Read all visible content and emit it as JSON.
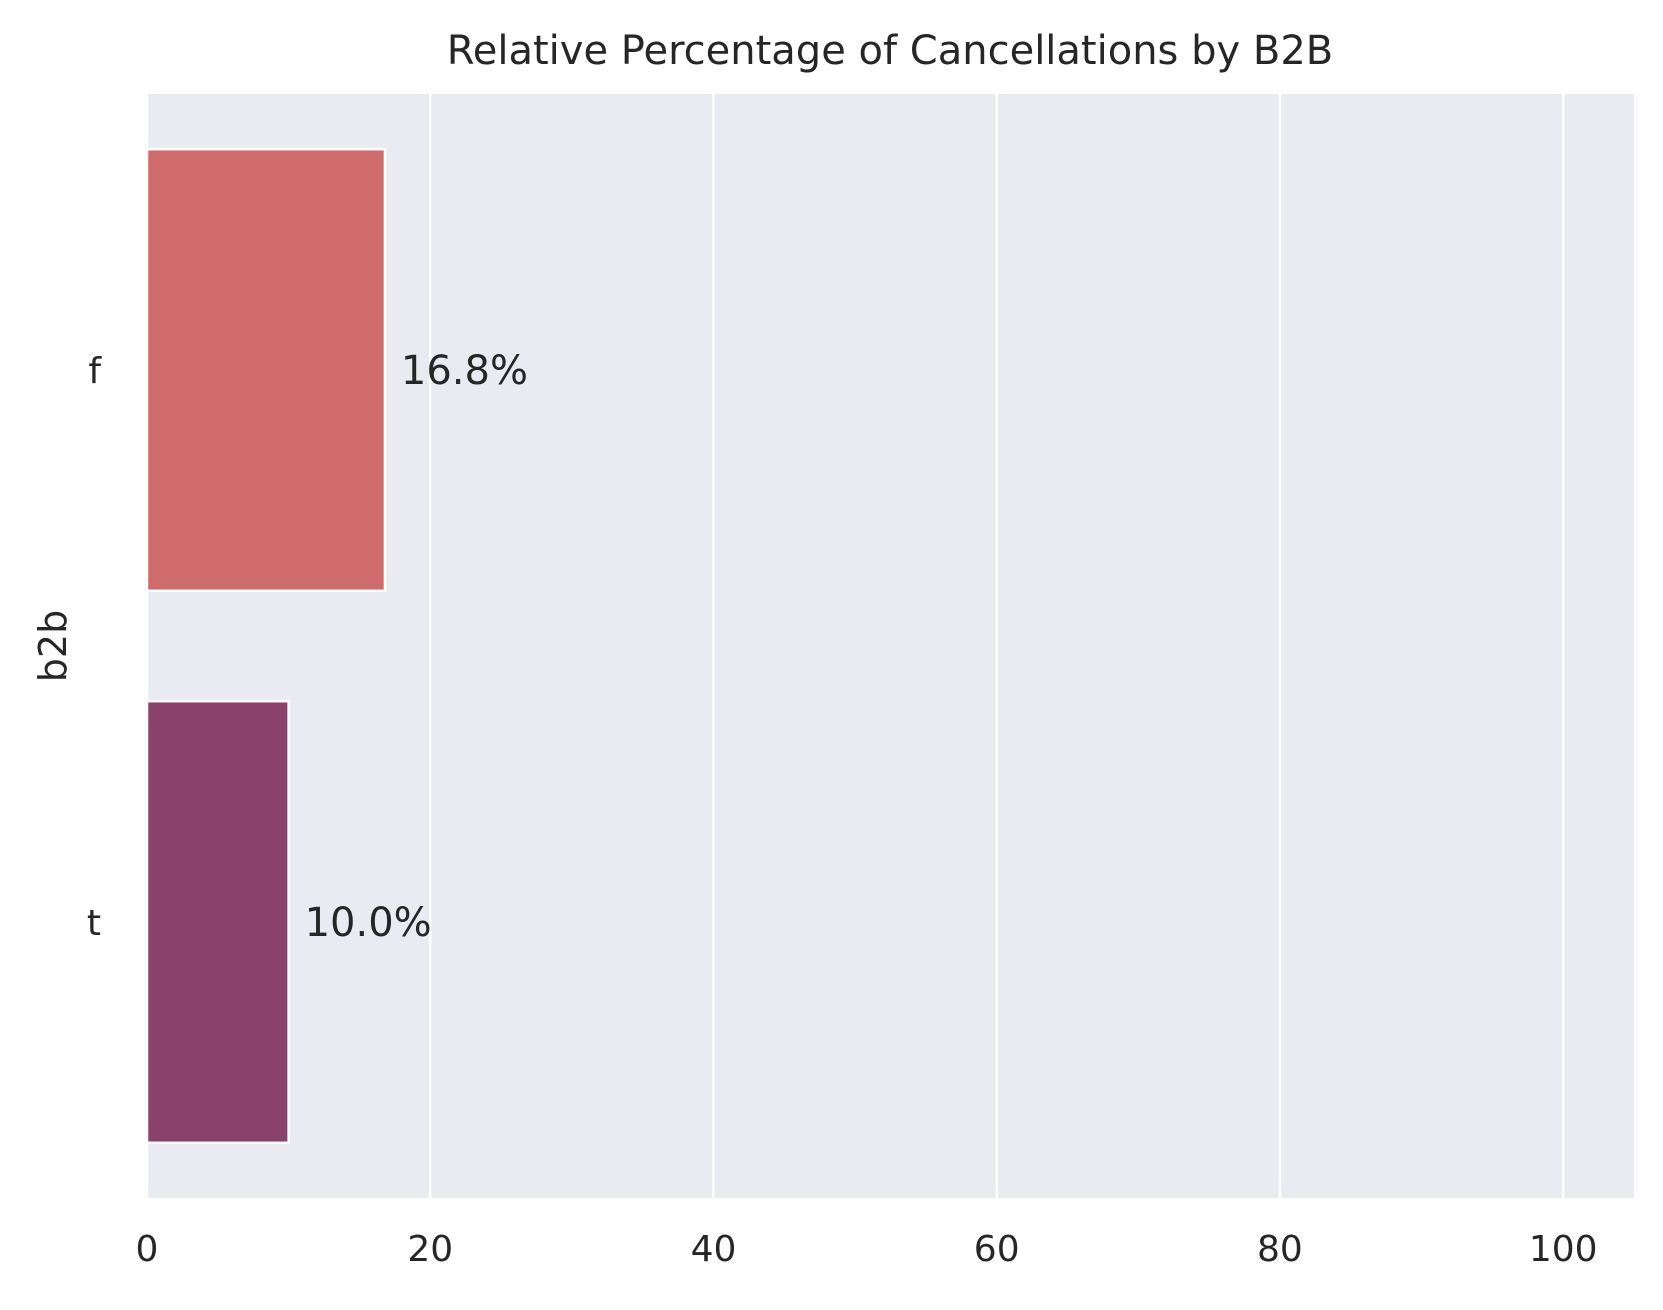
{
  "chart_data": {
    "type": "bar",
    "orientation": "horizontal",
    "title": "Relative Percentage of Cancellations by B2B",
    "xlabel": "",
    "ylabel": "b2b",
    "categories": [
      "f",
      "t"
    ],
    "values": [
      16.8,
      10.0
    ],
    "data_labels": [
      "16.8%",
      "10.0%"
    ],
    "bar_colors": [
      "#cf6b6a",
      "#8b426a"
    ],
    "xlim": [
      0,
      105
    ],
    "xticks": [
      0,
      20,
      40,
      60,
      80,
      100
    ],
    "grid": "vertical",
    "background": "#eaeaf2",
    "grid_color": "#ffffff"
  }
}
